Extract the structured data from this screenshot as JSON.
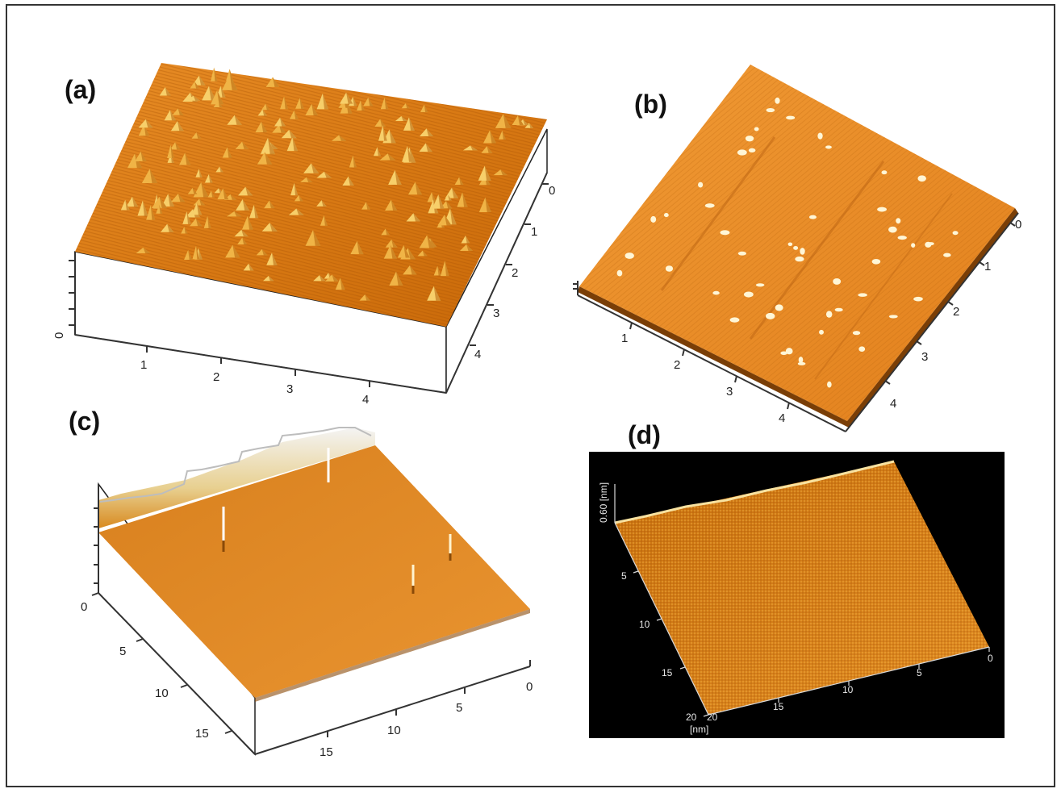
{
  "panels": {
    "a": {
      "label": "(a)",
      "x_ticks": [
        "1",
        "2",
        "3",
        "4"
      ],
      "y_ticks": [
        "0",
        "1",
        "2",
        "3",
        "4"
      ],
      "z_ticks": [
        "0"
      ]
    },
    "b": {
      "label": "(b)",
      "x_ticks": [
        "1",
        "2",
        "3",
        "4"
      ],
      "y_ticks": [
        "0",
        "1",
        "2",
        "3",
        "4"
      ]
    },
    "c": {
      "label": "(c)",
      "left_ticks": [
        "0",
        "5",
        "10",
        "15"
      ],
      "right_ticks": [
        "0",
        "5",
        "10",
        "15"
      ]
    },
    "d": {
      "label": "(d)",
      "z_label": "0.60 [nm]",
      "left_ticks": [
        "5",
        "10",
        "15",
        "20"
      ],
      "bottom_ticks": [
        "0",
        "5",
        "10",
        "15",
        "20"
      ],
      "unit_label": "[nm]"
    }
  },
  "colors": {
    "frame": "#333333",
    "surface_dark": "#b85a08",
    "surface_mid": "#e08a20",
    "surface_light": "#f6c860",
    "peak": "#fff4c8",
    "panel_d_background": "#000000"
  }
}
